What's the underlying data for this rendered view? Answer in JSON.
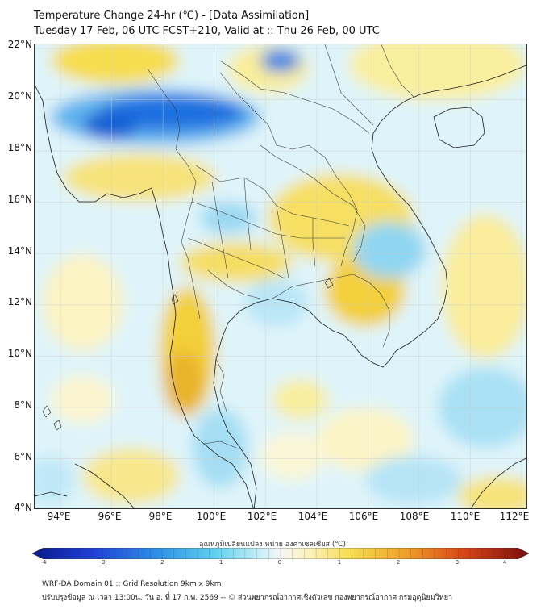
{
  "title_line1": "Temperature Change 24-hr (℃) - [Data Assimilation]",
  "title_line2": "Tuesday 17 Feb, 06 UTC FCST+210, Valid at :: Thu 26 Feb, 00 UTC",
  "lat_labels": [
    "22°N",
    "20°N",
    "18°N",
    "16°N",
    "14°N",
    "12°N",
    "10°N",
    "8°N",
    "6°N",
    "4°N"
  ],
  "lon_labels": [
    "94°E",
    "96°E",
    "98°E",
    "100°E",
    "102°E",
    "104°E",
    "106°E",
    "108°E",
    "110°E",
    "112°E"
  ],
  "colorbar": {
    "title": "อุณหภูมิเปลี่ยนแปลง หน่วย องศาเซลเซียส (℃)",
    "ticks": [
      "-4",
      "-3",
      "-2",
      "-1",
      "0",
      "1",
      "2",
      "3",
      "4"
    ],
    "min": -4,
    "max": 4
  },
  "footer_line1": "WRF-DA Domain 01 :: Grid Resolution 9km x 9km",
  "footer_line2": "ปรับปรุงข้อมูล ณ เวลา 13:00น. วัน อ. ที่ 17 ก.พ. 2569 -- © ส่วนพยากรณ์อากาศเชิงตัวเลข กองพยากรณ์อากาศ กรมอุตุนิยมวิทยา"
}
